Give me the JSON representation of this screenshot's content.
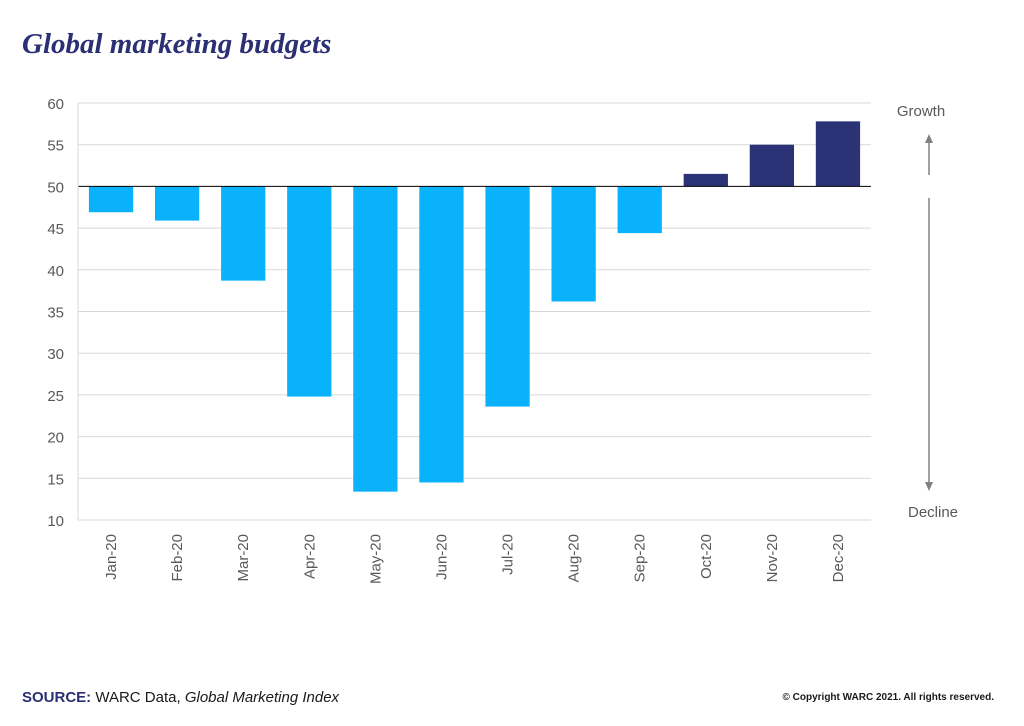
{
  "header": {
    "title": "Global marketing budgets"
  },
  "chart_data": {
    "type": "bar",
    "baseline": 50,
    "categories": [
      "Jan-20",
      "Feb-20",
      "Mar-20",
      "Apr-20",
      "May-20",
      "Jun-20",
      "Jul-20",
      "Aug-20",
      "Sep-20",
      "Oct-20",
      "Nov-20",
      "Dec-20"
    ],
    "values": [
      46.9,
      45.9,
      38.7,
      24.8,
      13.4,
      14.5,
      23.6,
      36.2,
      44.4,
      51.5,
      55.0,
      57.8
    ],
    "ylim": [
      10,
      60
    ],
    "yticks": [
      60,
      55,
      50,
      45,
      40,
      35,
      30,
      25,
      20,
      15,
      10
    ],
    "grid": true,
    "colors": {
      "decline": "#0ab2fb",
      "growth": "#2b3275",
      "grid": "#d9d9d9",
      "axis": "#000000",
      "arrow": "#808080"
    },
    "annotations": {
      "top": "Growth",
      "bottom": "Decline"
    }
  },
  "footer": {
    "source_label": "SOURCE:",
    "source_text": "WARC Data,",
    "source_italic": "Global Marketing Index",
    "copyright": "© Copyright WARC 2021. All rights reserved."
  }
}
